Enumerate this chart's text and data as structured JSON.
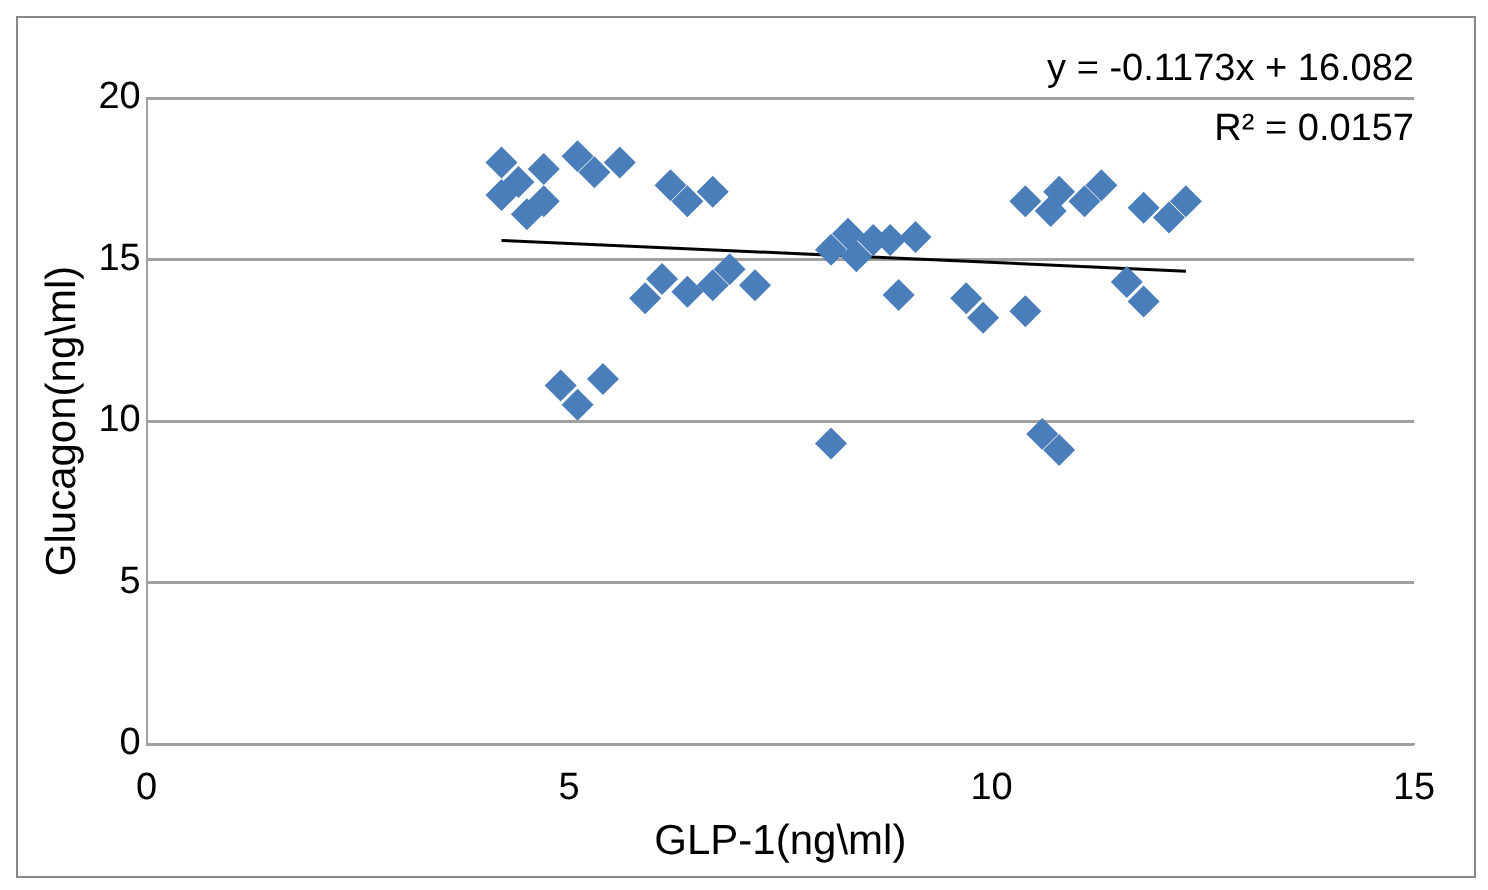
{
  "chart_data": {
    "type": "scatter",
    "xlabel": "GLP-1(ng\\ml)",
    "ylabel": "Glucagon(ng\\ml)",
    "xlim": [
      0,
      15
    ],
    "xticks": [
      0,
      5,
      10,
      15
    ],
    "ylim": [
      0,
      20
    ],
    "yticks": [
      0,
      5,
      10,
      15,
      20
    ],
    "grid": "y",
    "legend": false,
    "marker": "diamond",
    "annotations": [
      "y = -0.1173x + 16.082",
      "R² = 0.0157"
    ],
    "series": [
      {
        "color": "#4a7ebb",
        "x": [
          4.2,
          4.2,
          4.4,
          4.5,
          4.7,
          4.7,
          5.1,
          5.3,
          5.6,
          4.9,
          5.1,
          5.4,
          6.2,
          6.4,
          6.7,
          5.9,
          6.1,
          6.4,
          6.7,
          6.9,
          7.2,
          8.1,
          8.3,
          8.4,
          8.6,
          8.8,
          9.1,
          8.9,
          8.1,
          9.7,
          9.9,
          10.4,
          10.4,
          10.7,
          10.8,
          11.1,
          11.3,
          10.6,
          10.8,
          11.6,
          11.8,
          11.8,
          12.1,
          12.3
        ],
        "values": [
          18.0,
          17.0,
          17.4,
          16.4,
          16.8,
          17.8,
          18.2,
          17.7,
          18.0,
          11.1,
          10.5,
          11.3,
          17.3,
          16.8,
          17.1,
          13.8,
          14.4,
          14.0,
          14.2,
          14.7,
          14.2,
          15.3,
          15.8,
          15.1,
          15.6,
          15.6,
          15.7,
          13.9,
          9.3,
          13.8,
          13.2,
          13.4,
          16.8,
          16.5,
          17.1,
          16.8,
          17.3,
          9.6,
          9.1,
          14.3,
          13.7,
          16.6,
          16.3,
          16.8
        ]
      },
      {
        "type": "line",
        "color": "#000000",
        "marker": "none",
        "x": [
          4.2,
          12.3
        ],
        "values": [
          15.59,
          14.64
        ]
      }
    ]
  }
}
